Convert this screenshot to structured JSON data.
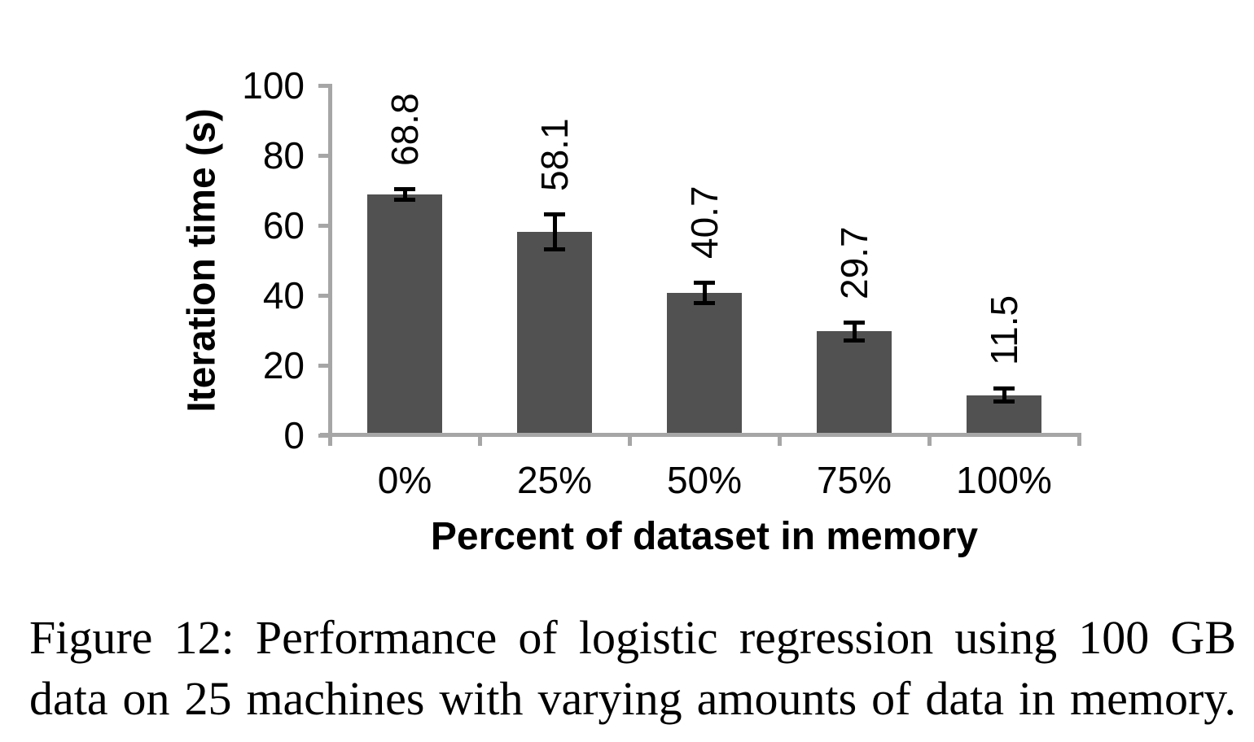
{
  "figure": {
    "caption": {
      "line1": "Figure 12: Performance of logistic regression using 100 GB",
      "line2": "data on 25 machines with varying amounts of data in memory."
    }
  },
  "chart_data": {
    "type": "bar",
    "title": "",
    "categories": [
      "0%",
      "25%",
      "50%",
      "75%",
      "100%"
    ],
    "values": [
      68.8,
      58.1,
      40.7,
      29.7,
      11.5
    ],
    "errors": [
      1.5,
      5.0,
      3.0,
      2.5,
      1.8
    ],
    "data_labels": [
      "68.8",
      "58.1",
      "40.7",
      "29.7",
      "11.5"
    ],
    "xlabel": "Percent of dataset in memory",
    "ylabel": "Iteration time (s)",
    "ylim": [
      0,
      100
    ],
    "yticks": [
      0,
      20,
      40,
      60,
      80,
      100
    ],
    "grid": false,
    "legend": "none",
    "bar_color": "#515151",
    "axis_color": "#a6a6a6",
    "error_bar_color": "#000000",
    "text_color": "#000000",
    "data_label_rotation": -90
  }
}
